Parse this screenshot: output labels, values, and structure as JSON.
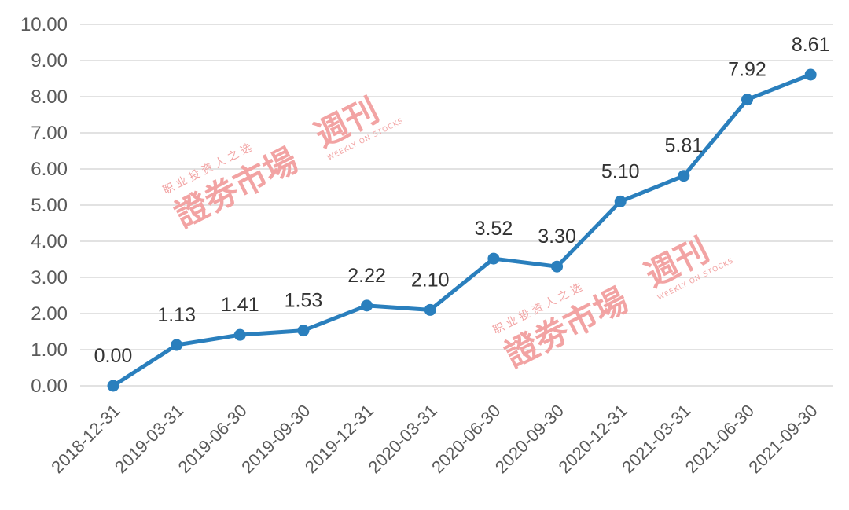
{
  "chart_data": {
    "type": "line",
    "x": [
      "2018-12-31",
      "2019-03-31",
      "2019-06-30",
      "2019-09-30",
      "2019-12-31",
      "2020-03-31",
      "2020-06-30",
      "2020-09-30",
      "2020-12-31",
      "2021-03-31",
      "2021-06-30",
      "2021-09-30"
    ],
    "values": [
      0.0,
      1.13,
      1.41,
      1.53,
      2.22,
      2.1,
      3.52,
      3.3,
      5.1,
      5.81,
      7.92,
      8.61
    ],
    "data_labels": [
      "0.00",
      "1.13",
      "1.41",
      "1.53",
      "2.22",
      "2.10",
      "3.52",
      "3.30",
      "5.10",
      "5.81",
      "7.92",
      "8.61"
    ],
    "y_ticks": [
      "0.00",
      "1.00",
      "2.00",
      "3.00",
      "4.00",
      "5.00",
      "6.00",
      "7.00",
      "8.00",
      "9.00",
      "10.00"
    ],
    "ylim": [
      0,
      10
    ],
    "grid": true,
    "legend": "none",
    "title": "",
    "xlabel": "",
    "ylabel": "",
    "colors": {
      "line": "#2a7fbd",
      "grid": "#d9d9d9",
      "watermark": "#f2a3a3"
    }
  },
  "watermark": {
    "main": "證劵市場",
    "side": "週刊",
    "tagline": "职 业 投 资 人 之 选",
    "english": "WEEKLY ON STOCKS"
  }
}
